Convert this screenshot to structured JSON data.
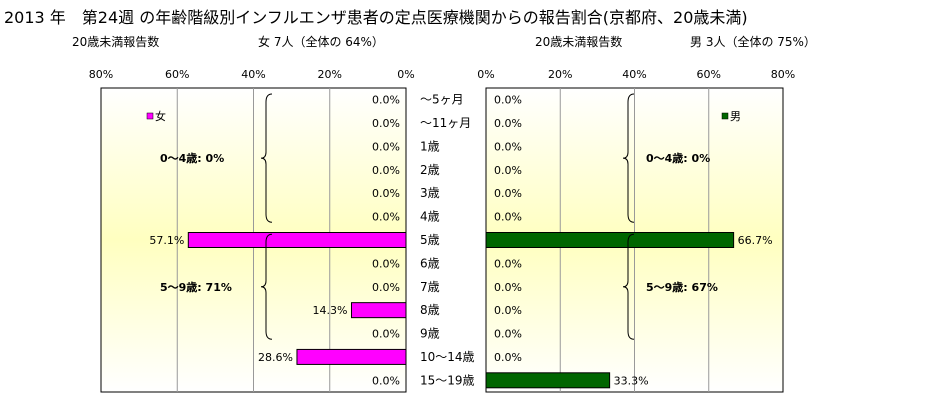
{
  "title": "2013 年　第24週 の年齢階級別インフルエンザ患者の定点医療機関からの報告割合(京都府、20歳未満)",
  "header": {
    "left_count_label": "20歳未満報告数",
    "left_summary": "女  7人（全体の  64%）",
    "right_count_label": "20歳未満報告数",
    "right_summary": "男  3人（全体の  75%）"
  },
  "chart_data": {
    "type": "bar",
    "orientation": "horizontal-butterfly",
    "categories": [
      "～5ヶ月",
      "～11ヶ月",
      "1歳",
      "2歳",
      "3歳",
      "4歳",
      "5歳",
      "6歳",
      "7歳",
      "8歳",
      "9歳",
      "10～14歳",
      "15～19歳"
    ],
    "series": [
      {
        "name": "女",
        "color": "#ff00ff",
        "side": "left",
        "values": [
          0.0,
          0.0,
          0.0,
          0.0,
          0.0,
          0.0,
          57.1,
          0.0,
          0.0,
          14.3,
          0.0,
          28.6,
          0.0
        ],
        "value_labels": [
          "0.0%",
          "0.0%",
          "0.0%",
          "0.0%",
          "0.0%",
          "0.0%",
          "57.1%",
          "0.0%",
          "0.0%",
          "14.3%",
          "0.0%",
          "28.6%",
          "0.0%"
        ]
      },
      {
        "name": "男",
        "color": "#006600",
        "side": "right",
        "values": [
          0.0,
          0.0,
          0.0,
          0.0,
          0.0,
          0.0,
          66.7,
          0.0,
          0.0,
          0.0,
          0.0,
          0.0,
          33.3
        ],
        "value_labels": [
          "0.0%",
          "0.0%",
          "0.0%",
          "0.0%",
          "0.0%",
          "0.0%",
          "66.7%",
          "0.0%",
          "0.0%",
          "0.0%",
          "0.0%",
          "0.0%",
          "33.3%"
        ]
      }
    ],
    "xlim": [
      0,
      80
    ],
    "xticks": [
      0,
      20,
      40,
      60,
      80
    ],
    "xtick_labels": [
      "0%",
      "20%",
      "40%",
      "60%",
      "80%"
    ],
    "grid": true,
    "legend_placement": "top-right of each panel",
    "annotations": {
      "left": [
        {
          "text": "0～4歳:  0%",
          "from_category": 0,
          "to_category": 5
        },
        {
          "text": "5～9歳:  71%",
          "from_category": 6,
          "to_category": 10
        }
      ],
      "right": [
        {
          "text": "0～4歳:  0%",
          "from_category": 0,
          "to_category": 5
        },
        {
          "text": "5～9歳:  67%",
          "from_category": 6,
          "to_category": 10
        }
      ]
    }
  }
}
